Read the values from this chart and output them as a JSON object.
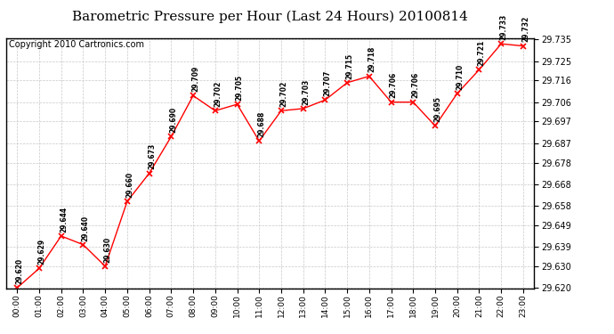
{
  "title": "Barometric Pressure per Hour (Last 24 Hours) 20100814",
  "copyright": "Copyright 2010 Cartronics.com",
  "hours": [
    "00:00",
    "01:00",
    "02:00",
    "03:00",
    "04:00",
    "05:00",
    "06:00",
    "07:00",
    "08:00",
    "09:00",
    "10:00",
    "11:00",
    "12:00",
    "13:00",
    "14:00",
    "15:00",
    "16:00",
    "17:00",
    "18:00",
    "19:00",
    "20:00",
    "21:00",
    "22:00",
    "23:00"
  ],
  "values": [
    29.62,
    29.629,
    29.644,
    29.64,
    29.63,
    29.66,
    29.673,
    29.69,
    29.709,
    29.702,
    29.705,
    29.688,
    29.702,
    29.703,
    29.707,
    29.715,
    29.718,
    29.706,
    29.706,
    29.695,
    29.71,
    29.721,
    29.733,
    29.732
  ],
  "ylim_min": 29.62,
  "ylim_max": 29.735,
  "yticks": [
    29.62,
    29.63,
    29.639,
    29.649,
    29.658,
    29.668,
    29.678,
    29.687,
    29.697,
    29.706,
    29.716,
    29.725,
    29.735
  ],
  "line_color": "#ff0000",
  "marker_color": "#ff0000",
  "bg_color": "#ffffff",
  "grid_color": "#c8c8c8",
  "title_fontsize": 11,
  "copyright_fontsize": 7,
  "label_fontsize": 6.5
}
